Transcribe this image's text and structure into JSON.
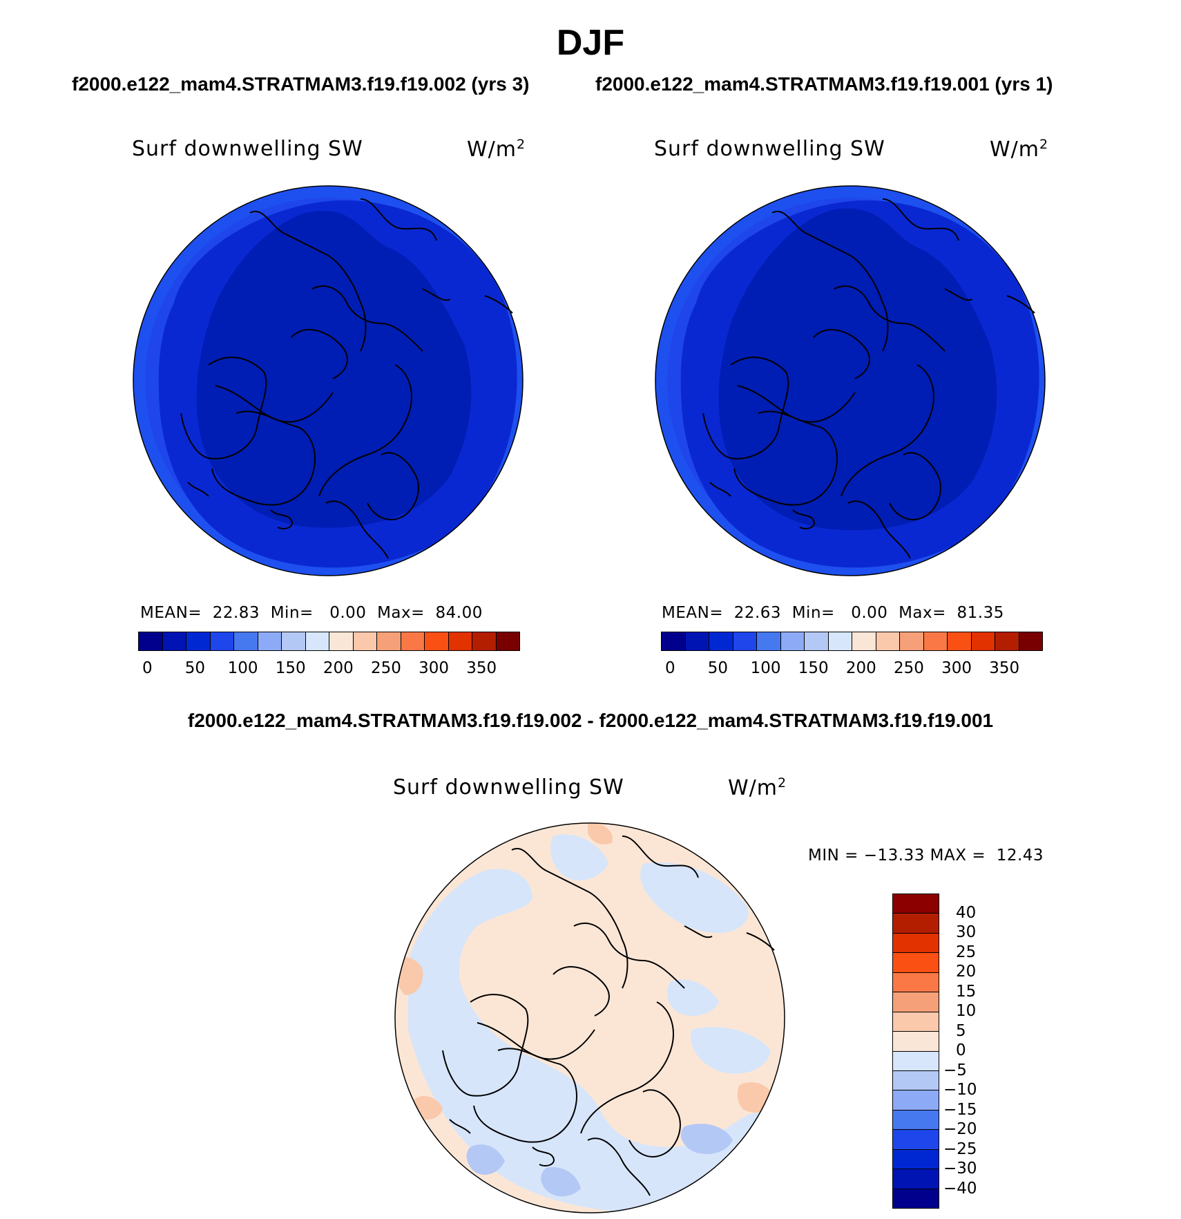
{
  "title": "DJF",
  "case1_title": "f2000.e122_mam4.STRATMAM3.f19.f19.002 (yrs 3)",
  "case2_title": "f2000.e122_mam4.STRATMAM3.f19.f19.001 (yrs 1)",
  "diff_title": "f2000.e122_mam4.STRATMAM3.f19.f19.002 - f2000.e122_mam4.STRATMAM3.f19.f19.001",
  "panels": [
    {
      "variable": "Surf downwelling SW",
      "units_base": "W/m",
      "units_exp": "2",
      "mean_label": "MEAN=",
      "mean": "22.83",
      "min_label": "Min=",
      "min": "0.00",
      "max_label": "Max=",
      "max": "84.00"
    },
    {
      "variable": "Surf downwelling SW",
      "units_base": "W/m",
      "units_exp": "2",
      "mean_label": "MEAN=",
      "mean": "22.63",
      "min_label": "Min=",
      "min": "0.00",
      "max_label": "Max=",
      "max": "81.35"
    }
  ],
  "diff_panel": {
    "variable": "Surf downwelling SW",
    "units_base": "W/m",
    "units_exp": "2",
    "min_label": "MIN =",
    "min": "−13.33",
    "max_label": "MAX =",
    "max": "12.43"
  },
  "abs_colorbar": {
    "colors": [
      "#00008c",
      "#0014b4",
      "#0028d2",
      "#1e46eb",
      "#4678f0",
      "#8caaf5",
      "#b4c8f5",
      "#d7e6fa",
      "#fae6d7",
      "#fac8aa",
      "#f5a078",
      "#fa7846",
      "#fa5014",
      "#e13200",
      "#b41e00",
      "#780000"
    ],
    "tick_labels": [
      "0",
      "50",
      "100",
      "150",
      "200",
      "250",
      "300",
      "350"
    ]
  },
  "diff_colorbar": {
    "colors": [
      "#00008c",
      "#0014b4",
      "#0028d2",
      "#1e46eb",
      "#4678f0",
      "#8caaf5",
      "#b4c8f5",
      "#d7e6fa",
      "#fae6d7",
      "#fac8aa",
      "#f5a078",
      "#fa7846",
      "#fa5014",
      "#e13200",
      "#b41e00",
      "#8c0000"
    ],
    "tick_labels": [
      "40",
      "30",
      "25",
      "20",
      "15",
      "10",
      "5",
      "0",
      "−5",
      "−10",
      "−15",
      "−20",
      "−25",
      "−30",
      "−40"
    ]
  }
}
